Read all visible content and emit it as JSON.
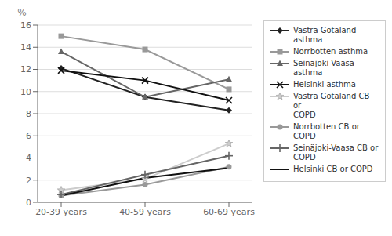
{
  "chart_data": {
    "type": "line",
    "ylabel": "%",
    "categories": [
      "20-39 years",
      "40-59 years",
      "60-69 years"
    ],
    "series": [
      {
        "name": "Västra Götaland\nasthma",
        "color": "#222222",
        "marker": "diamond",
        "values": [
          12.1,
          9.5,
          8.3
        ]
      },
      {
        "name": "Norrbotten asthma",
        "color": "#999999",
        "marker": "square",
        "values": [
          15.0,
          13.8,
          10.2
        ]
      },
      {
        "name": "Seinäjoki-Vaasa\nasthma",
        "color": "#666666",
        "marker": "triangle",
        "values": [
          13.6,
          9.5,
          11.1
        ]
      },
      {
        "name": "Helsinki asthma",
        "color": "#111111",
        "marker": "x",
        "values": [
          11.9,
          11.0,
          9.2
        ]
      },
      {
        "name": "Västra Götaland CB or\nCOPD",
        "color": "#cccccc",
        "marker": "star",
        "values": [
          1.1,
          2.1,
          5.3
        ]
      },
      {
        "name": "Norrbotten CB or\nCOPD",
        "color": "#999999",
        "marker": "circle",
        "values": [
          0.6,
          1.6,
          3.2
        ]
      },
      {
        "name": "Seinäjoki-Vaasa CB or\nCOPD",
        "color": "#666666",
        "marker": "plus",
        "values": [
          0.7,
          2.5,
          4.2
        ]
      },
      {
        "name": "Helsinki CB or COPD",
        "color": "#111111",
        "marker": "none",
        "values": [
          0.6,
          2.2,
          3.1
        ]
      }
    ],
    "ylim": [
      0,
      16
    ],
    "yticks": [
      0,
      2,
      4,
      6,
      8,
      10,
      12,
      14,
      16
    ],
    "grid": true,
    "legend": "right"
  }
}
